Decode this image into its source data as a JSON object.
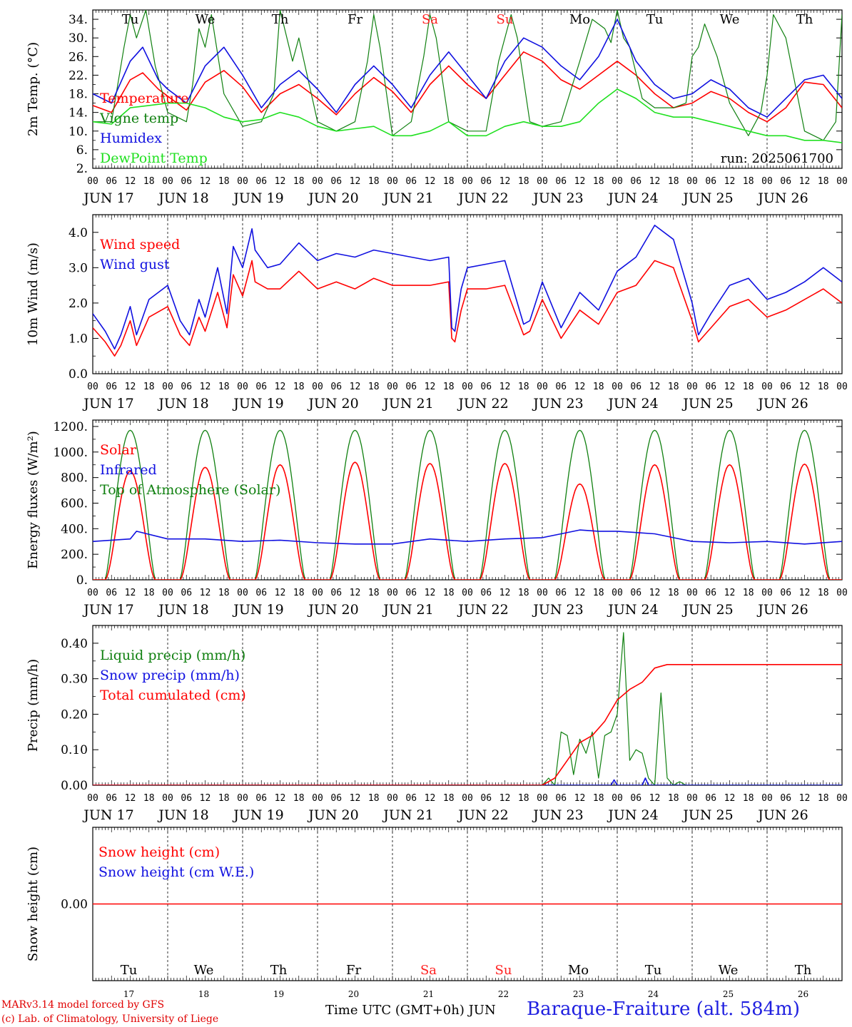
{
  "run_label": "run: 2025061700",
  "days": [
    {
      "abbr": "Tu",
      "date": "JUN 17",
      "num": "17",
      "weekend": false
    },
    {
      "abbr": "We",
      "date": "JUN 18",
      "num": "18",
      "weekend": false
    },
    {
      "abbr": "Th",
      "date": "JUN 19",
      "num": "19",
      "weekend": false
    },
    {
      "abbr": "Fr",
      "date": "JUN 20",
      "num": "20",
      "weekend": false
    },
    {
      "abbr": "Sa",
      "date": "JUN 21",
      "num": "21",
      "weekend": true
    },
    {
      "abbr": "Su",
      "date": "JUN 22",
      "num": "22",
      "weekend": true
    },
    {
      "abbr": "Mo",
      "date": "JUN 23",
      "num": "23",
      "weekend": false
    },
    {
      "abbr": "Tu",
      "date": "JUN 24",
      "num": "24",
      "weekend": false
    },
    {
      "abbr": "We",
      "date": "JUN 25",
      "num": "25",
      "weekend": false
    },
    {
      "abbr": "Th",
      "date": "JUN 26",
      "num": "26",
      "weekend": false
    }
  ],
  "hour_labels": [
    "00",
    "06",
    "12",
    "18"
  ],
  "final_hour_label": "00",
  "colors": {
    "red": "#ff0000",
    "darkgreen": "#108010",
    "blue": "#1010e0",
    "lightgreen": "#20e020",
    "weekend": "#ff2020"
  },
  "footer": {
    "model": "MARv3.14 model forced by GFS",
    "lab": "(c) Lab. of Climatology, University of Liege",
    "time_axis": "Time UTC (GMT+0h) JUN",
    "station": "Baraque-Fraiture (alt. 584m)"
  },
  "chart_data": [
    {
      "type": "line",
      "ylabel": "2m Temp. (°C)",
      "ylim": [
        2,
        36
      ],
      "yticks": [
        2,
        6,
        10,
        14,
        18,
        22,
        26,
        30,
        34
      ],
      "ytick_labels": [
        "2.",
        "6.",
        "10.",
        "14.",
        "18.",
        "22.",
        "26.",
        "30.",
        "34."
      ],
      "x_unit": "hours since 2025-06-17 00 UTC",
      "series": [
        {
          "name": "Temperature",
          "color": "#ff0000",
          "x": [
            0,
            6,
            12,
            16,
            21,
            24,
            30,
            36,
            42,
            48,
            54,
            60,
            66,
            72,
            78,
            84,
            90,
            96,
            102,
            108,
            114,
            120,
            126,
            132,
            138,
            144,
            150,
            156,
            162,
            168,
            174,
            180,
            186,
            192,
            198,
            204,
            210,
            216,
            222,
            228,
            234,
            240
          ],
          "values": [
            15.5,
            14,
            21,
            22.5,
            19,
            17.5,
            14.5,
            20.5,
            23,
            19.5,
            14,
            18,
            20,
            17,
            13.5,
            18,
            21.5,
            18.5,
            14,
            20,
            24,
            20,
            17,
            22,
            27,
            25,
            21,
            19,
            22,
            25,
            22,
            18,
            15,
            16,
            18.5,
            17,
            14,
            12,
            15,
            20.5,
            20,
            15
          ]
        },
        {
          "name": "Vigne temp",
          "color": "#108010",
          "x": [
            0,
            6,
            10,
            12,
            14,
            17,
            20,
            24,
            30,
            32,
            34,
            36,
            38,
            42,
            48,
            54,
            58,
            60,
            64,
            66,
            72,
            78,
            84,
            88,
            90,
            92,
            96,
            102,
            106,
            108,
            110,
            114,
            120,
            126,
            130,
            134,
            136,
            140,
            144,
            150,
            156,
            160,
            164,
            166,
            168,
            170,
            172,
            176,
            180,
            186,
            190,
            192,
            194,
            196,
            200,
            204,
            210,
            214,
            216,
            218,
            222,
            228,
            234,
            238,
            240
          ],
          "values": [
            12,
            12,
            28,
            35,
            30,
            36,
            24,
            14,
            12,
            20,
            32,
            28,
            35,
            18,
            11,
            12,
            18,
            36,
            25,
            30,
            12,
            10,
            12,
            25,
            35,
            28,
            9,
            12,
            26,
            35,
            30,
            12,
            10,
            10,
            25,
            35,
            30,
            12,
            11,
            12,
            25,
            34,
            32,
            29,
            36,
            30,
            28,
            17,
            15,
            15,
            16,
            26,
            28,
            33,
            26,
            16,
            9,
            14,
            22,
            35,
            30,
            10,
            8,
            12,
            35
          ]
        },
        {
          "name": "Humidex",
          "color": "#1010e0",
          "x": [
            0,
            6,
            12,
            16,
            21,
            24,
            30,
            36,
            42,
            48,
            54,
            60,
            66,
            72,
            78,
            84,
            90,
            96,
            102,
            108,
            114,
            120,
            126,
            132,
            138,
            144,
            150,
            156,
            162,
            168,
            174,
            180,
            186,
            192,
            198,
            204,
            210,
            216,
            222,
            228,
            234,
            240
          ],
          "values": [
            18,
            16,
            25,
            28,
            21,
            19,
            16,
            24,
            28,
            22,
            15,
            20,
            23,
            19,
            14,
            20,
            24,
            20,
            15,
            22,
            27,
            22,
            17,
            25,
            30,
            28,
            24,
            21,
            26,
            34,
            25,
            20,
            17,
            18,
            21,
            19,
            15,
            13,
            17,
            21,
            22,
            17
          ]
        },
        {
          "name": "DewPoint Temp",
          "color": "#20e020",
          "x": [
            0,
            6,
            12,
            18,
            24,
            30,
            36,
            42,
            48,
            54,
            60,
            66,
            72,
            78,
            84,
            90,
            96,
            102,
            108,
            114,
            120,
            126,
            132,
            138,
            144,
            150,
            156,
            162,
            168,
            174,
            180,
            186,
            192,
            198,
            204,
            210,
            216,
            222,
            228,
            234,
            240
          ],
          "values": [
            12,
            11.5,
            15,
            15.5,
            16,
            16,
            15,
            13,
            12,
            12.5,
            14,
            13,
            11,
            10,
            10.5,
            11,
            9,
            9,
            10,
            12,
            9,
            9,
            11,
            12,
            11,
            11,
            12,
            16,
            19,
            17,
            14,
            13,
            13,
            12,
            11,
            10,
            9,
            9,
            8,
            8,
            7.5
          ]
        }
      ]
    },
    {
      "type": "line",
      "ylabel": "10m Wind (m/s)",
      "ylim": [
        0,
        4.5
      ],
      "yticks": [
        0,
        1,
        2,
        3,
        4
      ],
      "ytick_labels": [
        "0.0",
        "1.0",
        "2.0",
        "3.0",
        "4.0"
      ],
      "series": [
        {
          "name": "Wind speed",
          "color": "#ff0000",
          "x": [
            0,
            4,
            7,
            9,
            12,
            14,
            18,
            24,
            28,
            31,
            34,
            36,
            40,
            43,
            45,
            48,
            51,
            52,
            56,
            60,
            66,
            72,
            78,
            84,
            90,
            96,
            102,
            108,
            114,
            115,
            116,
            118,
            120,
            126,
            132,
            138,
            140,
            144,
            150,
            156,
            162,
            168,
            174,
            180,
            186,
            192,
            194,
            198,
            204,
            210,
            216,
            222,
            228,
            234,
            240
          ],
          "values": [
            1.3,
            0.9,
            0.5,
            0.8,
            1.5,
            0.8,
            1.6,
            1.9,
            1.1,
            0.8,
            1.6,
            1.2,
            2.3,
            1.3,
            2.8,
            2.2,
            3.2,
            2.6,
            2.4,
            2.4,
            2.9,
            2.4,
            2.6,
            2.4,
            2.7,
            2.5,
            2.5,
            2.5,
            2.6,
            1.0,
            0.9,
            1.8,
            2.4,
            2.4,
            2.5,
            1.1,
            1.2,
            2.1,
            1.0,
            1.8,
            1.4,
            2.3,
            2.5,
            3.2,
            3.0,
            1.5,
            0.9,
            1.3,
            1.9,
            2.1,
            1.6,
            1.8,
            2.1,
            2.4,
            2.0
          ]
        },
        {
          "name": "Wind gust",
          "color": "#1010e0",
          "x": [
            0,
            4,
            7,
            9,
            12,
            14,
            18,
            24,
            28,
            31,
            34,
            36,
            40,
            43,
            45,
            48,
            51,
            52,
            56,
            60,
            66,
            72,
            78,
            84,
            90,
            96,
            102,
            108,
            114,
            115,
            116,
            118,
            120,
            126,
            132,
            138,
            140,
            144,
            150,
            156,
            162,
            168,
            174,
            180,
            186,
            192,
            194,
            198,
            204,
            210,
            216,
            222,
            228,
            234,
            240
          ],
          "values": [
            1.7,
            1.2,
            0.7,
            1.1,
            1.9,
            1.1,
            2.1,
            2.5,
            1.5,
            1.1,
            2.1,
            1.6,
            3.0,
            1.7,
            3.6,
            3.0,
            4.1,
            3.5,
            3.0,
            3.1,
            3.7,
            3.2,
            3.4,
            3.3,
            3.5,
            3.4,
            3.3,
            3.2,
            3.3,
            1.3,
            1.2,
            2.4,
            3.0,
            3.1,
            3.2,
            1.4,
            1.5,
            2.6,
            1.3,
            2.3,
            1.8,
            2.9,
            3.3,
            4.2,
            3.8,
            2.0,
            1.1,
            1.7,
            2.5,
            2.7,
            2.1,
            2.3,
            2.6,
            3.0,
            2.6
          ]
        }
      ]
    },
    {
      "type": "line",
      "ylabel": "Energy fluxes (W/m²)",
      "ylim": [
        0,
        1250
      ],
      "yticks": [
        0,
        200,
        400,
        600,
        800,
        1000,
        1200
      ],
      "ytick_labels": [
        "0.",
        "200.",
        "400.",
        "600.",
        "800.",
        "1000.",
        "1200."
      ],
      "toa_peak": 1170,
      "solar_peaks": [
        850,
        880,
        900,
        920,
        910,
        910,
        750,
        900,
        900,
        905
      ],
      "day_start_hour": 4,
      "day_end_hour": 20,
      "series": [
        {
          "name": "Solar",
          "color": "#ff0000"
        },
        {
          "name": "Infrared",
          "color": "#1010e0",
          "x": [
            0,
            12,
            14,
            24,
            36,
            48,
            60,
            72,
            84,
            96,
            108,
            120,
            132,
            144,
            150,
            156,
            162,
            168,
            174,
            180,
            186,
            192,
            204,
            216,
            228,
            240
          ],
          "values": [
            300,
            320,
            380,
            320,
            320,
            300,
            310,
            290,
            280,
            280,
            320,
            300,
            320,
            330,
            360,
            390,
            380,
            380,
            370,
            360,
            330,
            300,
            290,
            300,
            280,
            300
          ]
        },
        {
          "name": "Top of Atmosphere (Solar)",
          "color": "#108010"
        }
      ]
    },
    {
      "type": "line",
      "ylabel": "Precip (mm/h)",
      "ylim": [
        0,
        0.45
      ],
      "yticks": [
        0,
        0.1,
        0.2,
        0.3,
        0.4
      ],
      "ytick_labels": [
        "0.00",
        "0.10",
        "0.20",
        "0.30",
        "0.40"
      ],
      "series": [
        {
          "name": "Liquid precip (mm/h)",
          "color": "#108010",
          "x": [
            0,
            144,
            146,
            148,
            150,
            152,
            154,
            156,
            158,
            160,
            162,
            164,
            166,
            168,
            170,
            172,
            174,
            176,
            178,
            180,
            182,
            184,
            186,
            188,
            190,
            192,
            240
          ],
          "values": [
            0,
            0,
            0.02,
            0.0,
            0.15,
            0.14,
            0.03,
            0.13,
            0.09,
            0.15,
            0.02,
            0.14,
            0.15,
            0.2,
            0.43,
            0.07,
            0.1,
            0.09,
            0.02,
            0.0,
            0.26,
            0.02,
            0.0,
            0.01,
            0.0,
            0.0,
            0.0
          ]
        },
        {
          "name": "Snow precip (mm/h)",
          "color": "#1010e0",
          "x": [
            0,
            166,
            167,
            168,
            176,
            177,
            178,
            240
          ],
          "values": [
            0,
            0,
            0.015,
            0,
            0,
            0.02,
            0,
            0
          ]
        },
        {
          "name": "Total cumulated (cm)",
          "color": "#ff0000",
          "x": [
            0,
            144,
            148,
            152,
            156,
            160,
            164,
            168,
            172,
            176,
            180,
            182,
            184,
            240
          ],
          "values": [
            0,
            0,
            0.02,
            0.07,
            0.12,
            0.14,
            0.18,
            0.24,
            0.27,
            0.29,
            0.33,
            0.335,
            0.34,
            0.34
          ]
        }
      ]
    },
    {
      "type": "line",
      "ylabel": "Snow height (cm)",
      "ylim": [
        -1,
        1
      ],
      "yticks": [
        0
      ],
      "ytick_labels": [
        "0.00"
      ],
      "series": [
        {
          "name": "Snow height (cm)",
          "color": "#ff0000",
          "x": [
            0,
            240
          ],
          "values": [
            0,
            0
          ]
        },
        {
          "name": "Snow height (cm W.E.)",
          "color": "#1010e0"
        }
      ]
    }
  ]
}
